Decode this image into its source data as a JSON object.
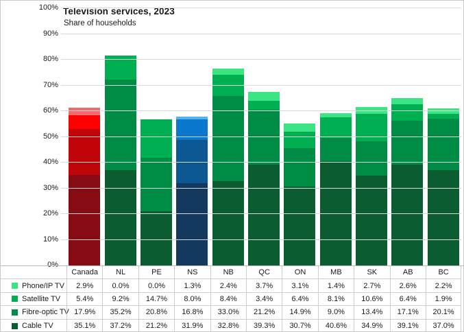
{
  "title": "Television services, 2023",
  "subtitle": "Share of households",
  "chart_data": {
    "type": "bar",
    "stacked": true,
    "orientation": "vertical",
    "title": "Television services, 2023",
    "subtitle": "Share of households",
    "categories": [
      "Canada",
      "NL",
      "PE",
      "NS",
      "NB",
      "QC",
      "ON",
      "MB",
      "SK",
      "AB",
      "BC"
    ],
    "series": [
      {
        "name": "Phone/IP TV",
        "values": [
          2.9,
          0.0,
          0.0,
          1.3,
          2.4,
          3.7,
          3.1,
          1.4,
          2.7,
          2.6,
          2.2
        ]
      },
      {
        "name": "Satellite TV",
        "values": [
          5.4,
          9.2,
          14.7,
          8.0,
          8.4,
          3.4,
          6.4,
          8.1,
          10.6,
          6.4,
          1.9
        ]
      },
      {
        "name": "Fibre-optic TV",
        "values": [
          17.9,
          35.2,
          20.8,
          16.8,
          33.0,
          21.2,
          14.9,
          9.0,
          13.4,
          17.1,
          20.1
        ]
      },
      {
        "name": "Cable TV",
        "values": [
          35.1,
          37.2,
          21.2,
          31.9,
          32.8,
          39.3,
          30.7,
          40.6,
          34.9,
          39.1,
          37.0
        ]
      }
    ],
    "ylim": [
      0,
      100
    ],
    "y_tick_labels": [
      "0%",
      "10%",
      "20%",
      "30%",
      "40%",
      "50%",
      "60%",
      "70%",
      "80%",
      "90%",
      "100%"
    ],
    "grid": "horizontal",
    "legend_position": "table-rows-left",
    "value_suffix": "%"
  },
  "colors": {
    "palettes": {
      "green": [
        "#3ce483",
        "#00af52",
        "#008c45",
        "#0b5c31"
      ],
      "red": [
        "#f0696c",
        "#fe0000",
        "#c00509",
        "#870b12"
      ],
      "blue": [
        "#55b2f1",
        "#0a79cd",
        "#0c5892",
        "#14395e"
      ]
    },
    "category_palettes": [
      "red",
      "green",
      "green",
      "blue",
      "green",
      "green",
      "green",
      "green",
      "green",
      "green",
      "green"
    ],
    "legend_swatches": [
      "#3ce483",
      "#00af52",
      "#008c45",
      "#0b5c31"
    ],
    "gridline": "#d9d9d9",
    "table_border": "#cfcfcf",
    "background": "#ffffff",
    "text": "#1a1a1a"
  }
}
